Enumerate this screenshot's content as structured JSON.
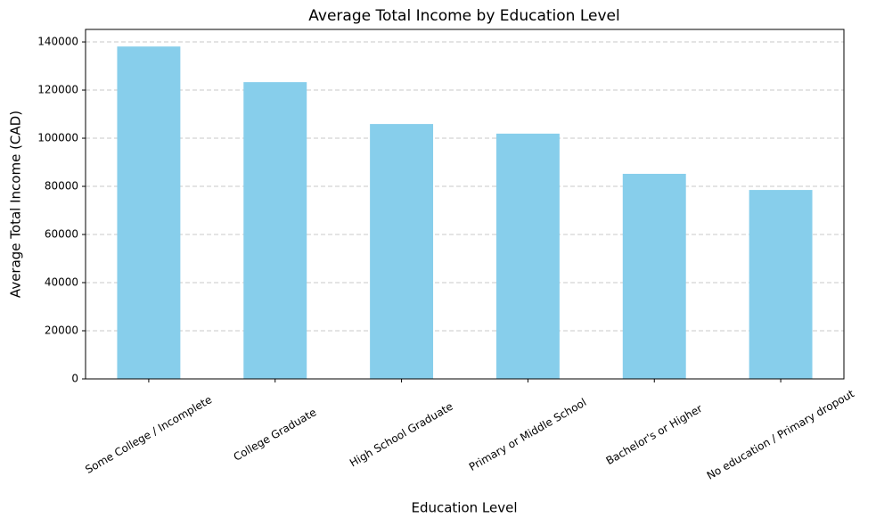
{
  "chart_data": {
    "type": "bar",
    "title": "Average Total Income by Education Level",
    "x_label": "Education Level",
    "y_label": "Average Total Income (CAD)",
    "categories": [
      "Some College / Incomplete",
      "College Graduate",
      "High School Graduate",
      "Primary or Middle School",
      "Bachelor's or Higher",
      "No education / Primary dropout"
    ],
    "values": [
      138100,
      123300,
      105900,
      101900,
      85200,
      78500
    ],
    "color": "#87ceeb",
    "ylim": [
      0,
      145200
    ],
    "yticks": [
      0,
      20000,
      40000,
      60000,
      80000,
      100000,
      120000,
      140000
    ],
    "grid": true
  }
}
